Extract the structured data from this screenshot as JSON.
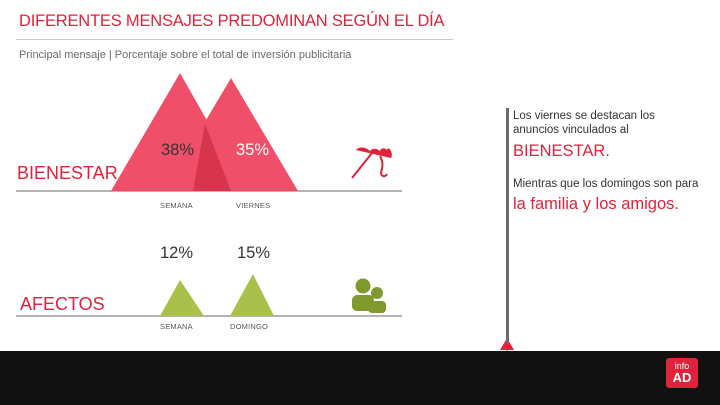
{
  "header": {
    "title": "DIFERENTES MENSAJES PREDOMINAN SEGÚN EL DÍA",
    "subtitle": "Principal mensaje | Porcentaje sobre el total de inversión publicitaria"
  },
  "chart_data": {
    "type": "area",
    "title": "DIFERENTES MENSAJES PREDOMINAN SEGÚN EL DÍA",
    "subtitle": "Principal mensaje | Porcentaje sobre el total de inversión publicitaria",
    "unit": "%",
    "groups": [
      {
        "name": "BIENESTAR",
        "color": "#ef4f68",
        "icon": "umbrella-icon",
        "items": [
          {
            "day": "SEMANA",
            "value": 38,
            "label": "38%"
          },
          {
            "day": "VIERNES",
            "value": 35,
            "label": "35%"
          }
        ]
      },
      {
        "name": "AFECTOS",
        "color": "#a9c04a",
        "icon": "people-icon",
        "items": [
          {
            "day": "SEMANA",
            "value": 12,
            "label": "12%"
          },
          {
            "day": "DOMINGO",
            "value": 15,
            "label": "15%"
          }
        ]
      }
    ]
  },
  "panel": {
    "text_1": "Los viernes se destacan los anuncios vinculados al",
    "highlight_1": "BIENESTAR.",
    "text_2": "Mientras que los domingos son para",
    "highlight_2": "la familia y los amigos."
  },
  "logo": {
    "top": "info",
    "bottom": "AD"
  },
  "colors": {
    "accent": "#e0223a",
    "bienestar": "#ef4f68",
    "bienestar_dark": "#d8344c",
    "afectos": "#a9c04a",
    "afectos_dark": "#7f9a2c"
  }
}
